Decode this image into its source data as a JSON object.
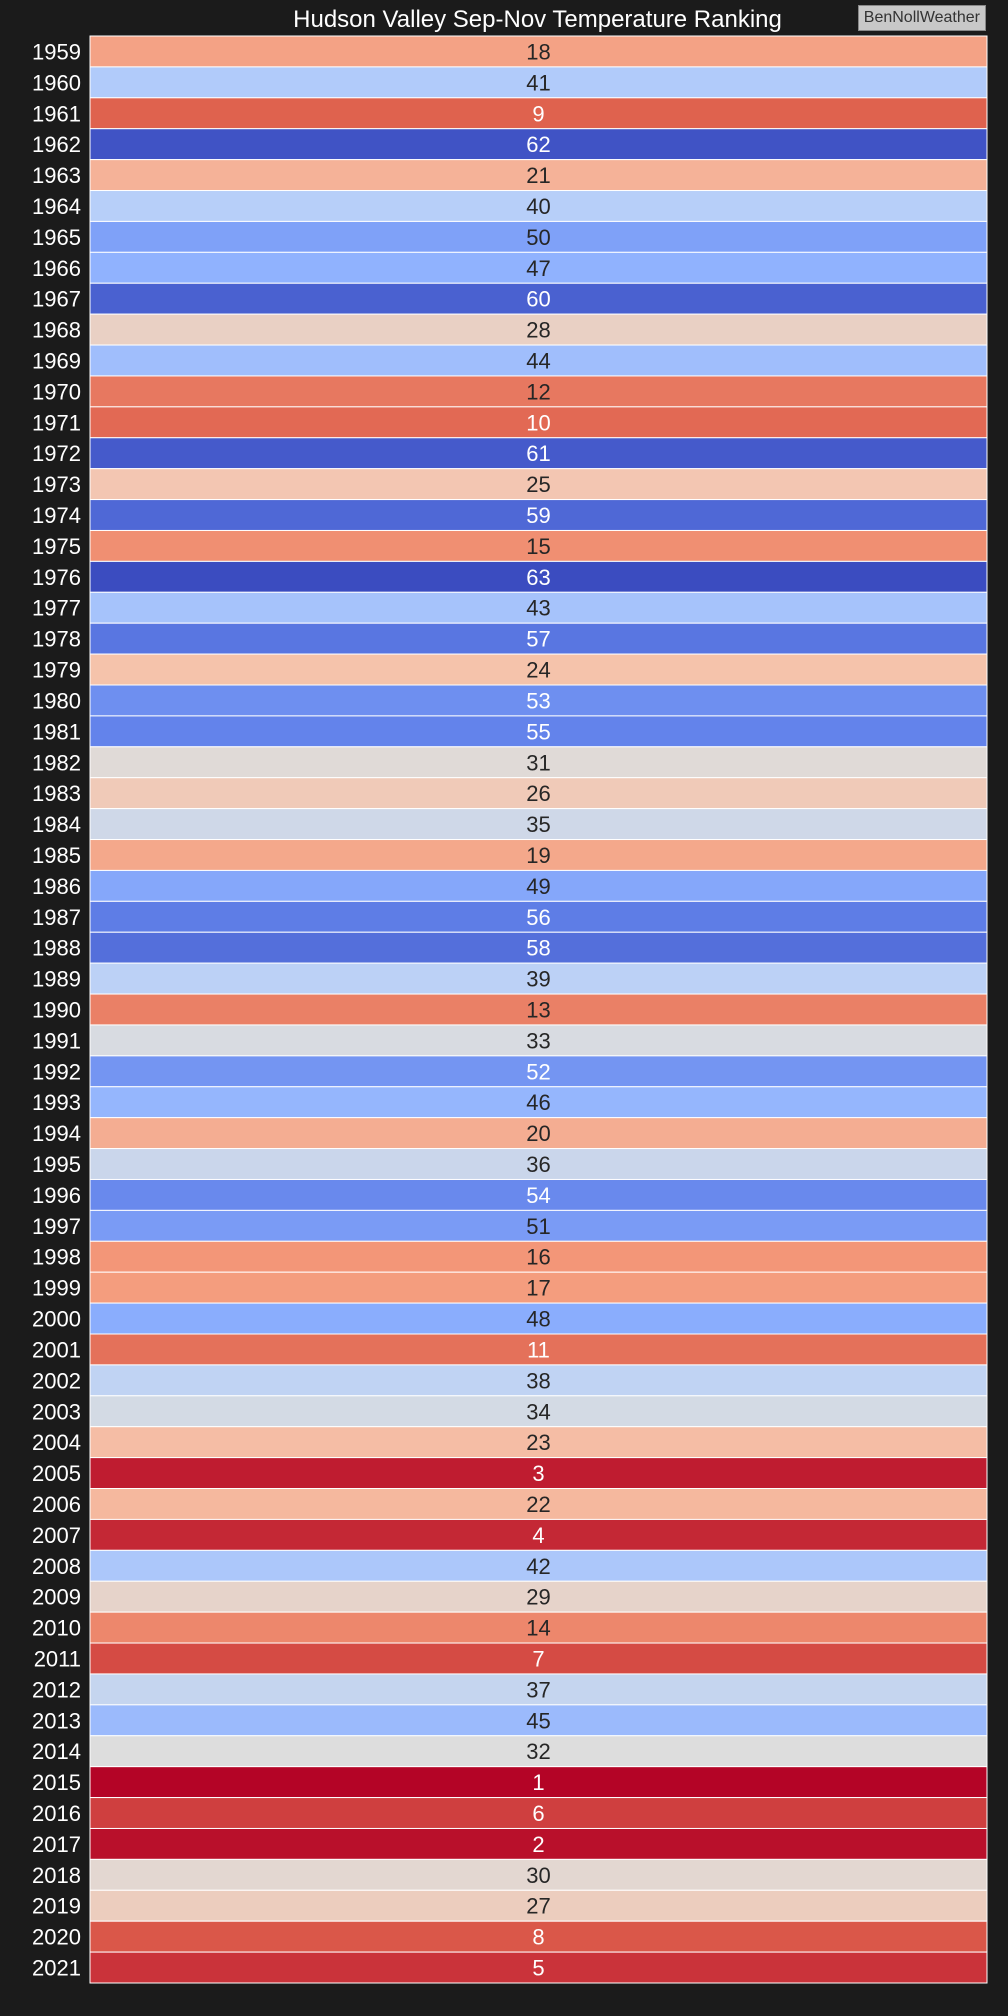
{
  "watermark": "BenNollWeather",
  "chart_data": {
    "type": "heatmap",
    "title": "Hudson Valley Sep-Nov Temperature Ranking",
    "xlabel": "",
    "ylabel": "",
    "colormap": "coolwarm",
    "color_range": [
      1,
      63
    ],
    "years": [
      1959,
      1960,
      1961,
      1962,
      1963,
      1964,
      1965,
      1966,
      1967,
      1968,
      1969,
      1970,
      1971,
      1972,
      1973,
      1974,
      1975,
      1976,
      1977,
      1978,
      1979,
      1980,
      1981,
      1982,
      1983,
      1984,
      1985,
      1986,
      1987,
      1988,
      1989,
      1990,
      1991,
      1992,
      1993,
      1994,
      1995,
      1996,
      1997,
      1998,
      1999,
      2000,
      2001,
      2002,
      2003,
      2004,
      2005,
      2006,
      2007,
      2008,
      2009,
      2010,
      2011,
      2012,
      2013,
      2014,
      2015,
      2016,
      2017,
      2018,
      2019,
      2020,
      2021
    ],
    "values": [
      18,
      41,
      9,
      62,
      21,
      40,
      50,
      47,
      60,
      28,
      44,
      12,
      10,
      61,
      25,
      59,
      15,
      63,
      43,
      57,
      24,
      53,
      55,
      31,
      26,
      35,
      19,
      49,
      56,
      58,
      39,
      13,
      33,
      52,
      46,
      20,
      36,
      54,
      51,
      16,
      17,
      48,
      11,
      38,
      34,
      23,
      3,
      22,
      4,
      42,
      29,
      14,
      7,
      37,
      45,
      32,
      1,
      6,
      2,
      30,
      27,
      8,
      5
    ]
  }
}
